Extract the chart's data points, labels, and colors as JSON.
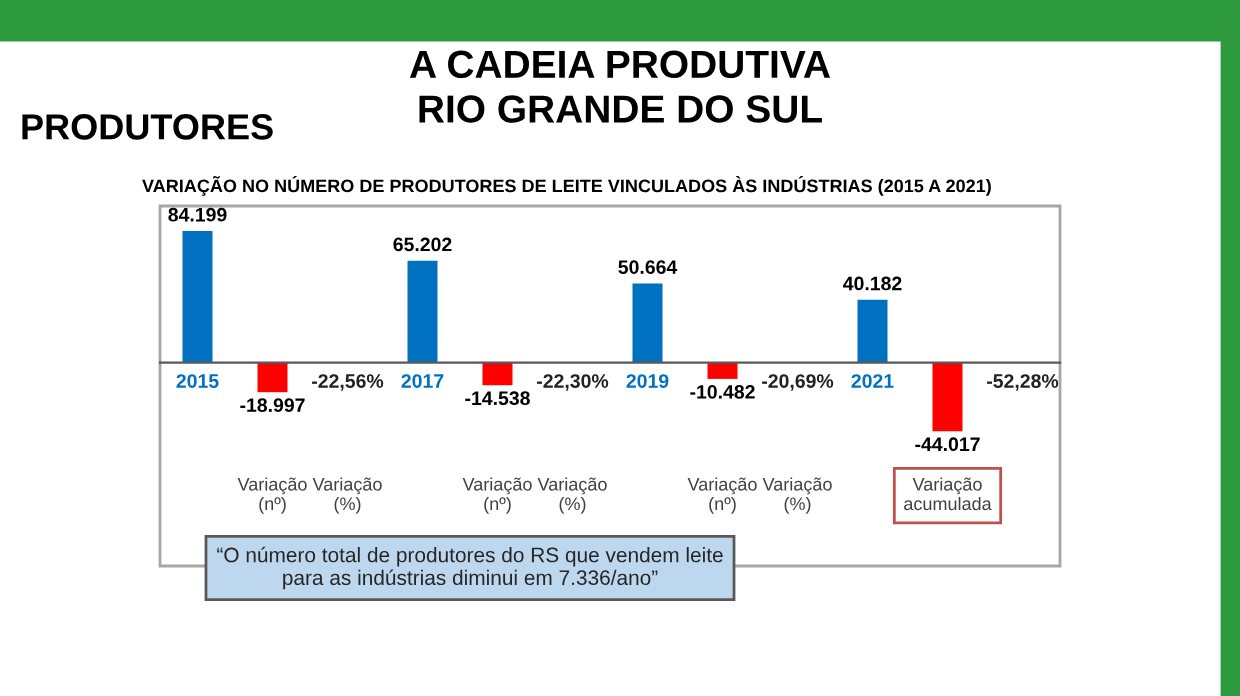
{
  "chart_data": {
    "type": "bar",
    "title": "A CADEIA PRODUTIVA\nRIO GRANDE DO SUL",
    "subtitle": "VARIAÇÃO NO NÚMERO DE PRODUTORES DE LEITE VINCULADOS ÀS INDÚSTRIAS (2015 A 2021)",
    "categories": [
      "2015",
      null,
      "-22,56%",
      "2017",
      null,
      "-22,30%",
      "2019",
      null,
      "-20,69%",
      "2021",
      null,
      "-52,28%"
    ],
    "values": [
      84199,
      -18997,
      null,
      65202,
      -14538,
      null,
      50664,
      -10482,
      null,
      40182,
      -44017,
      null
    ],
    "value_labels": [
      "84.199",
      "-18.997",
      null,
      "65.202",
      "-14.538",
      null,
      "50.664",
      "-10.482",
      null,
      "40.182",
      "-44.017",
      null
    ],
    "colors": [
      "#0070c0",
      "#ff0000",
      null,
      "#0070c0",
      "#ff0000",
      null,
      "#0070c0",
      "#ff0000",
      null,
      "#0070c0",
      "#ff0000",
      null
    ],
    "tick_labels": "x",
    "grid": false,
    "annotations": [
      "PRODUTORES",
      "Variação\n(nº)",
      "Variação\n(%)",
      "Variação\n(nº)",
      "Variação\n(%)",
      "Variação\n(nº)",
      "Variação\n(%)",
      "Variação\nacumulada",
      "“O número total de produtores do RS que vendem leite\npara as indústrias diminui em 7.336/ano”"
    ]
  }
}
